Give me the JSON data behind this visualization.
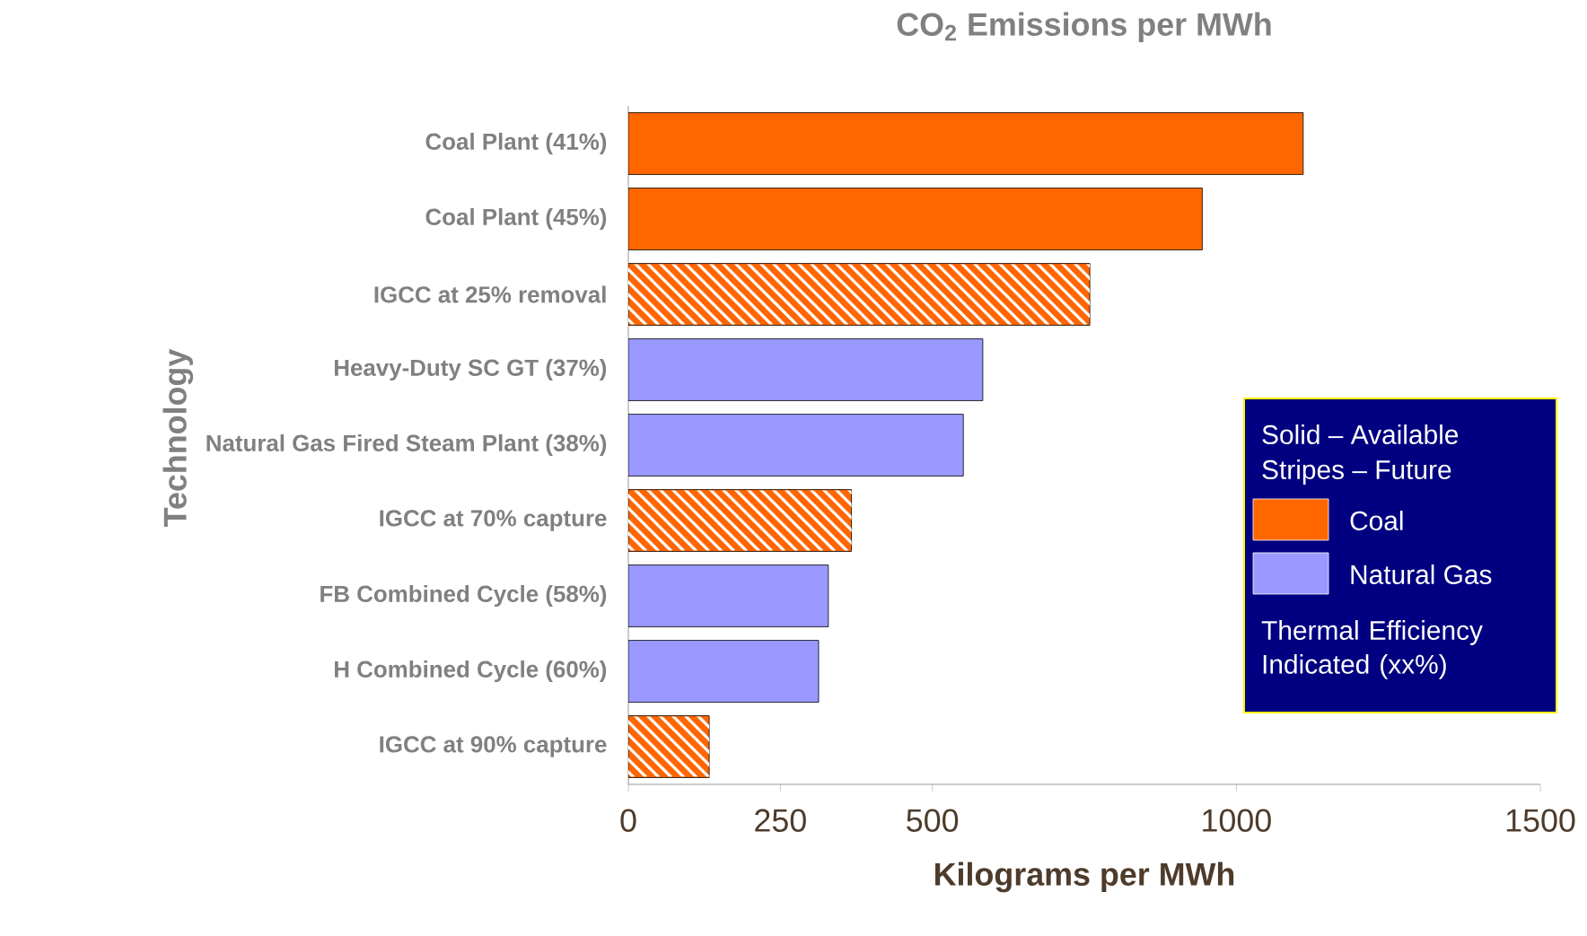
{
  "chart_data": {
    "type": "bar",
    "orientation": "horizontal",
    "title": "CO$_{2}$ Emissions per MWh",
    "xlabel": "Kilograms per MWh",
    "ylabel": "Technology",
    "categories": [
      "Coal Plant (41%)",
      "Coal Plant (45%)",
      "IGCC at 25% removal",
      "Heavy-Duty SC GT (37%)",
      "Natural Gas Fired Steam Plant (38%)",
      "IGCC at 70% capture",
      "FB Combined Cycle (58%)",
      "H Combined Cycle (60%)",
      "IGCC at 90% capture"
    ],
    "series": [
      {
        "name": "Coal",
        "color": "#ff6600",
        "values": [
          1110,
          944,
          null,
          null,
          null,
          null,
          null,
          null,
          null
        ]
      },
      {
        "name": "Natural Gas",
        "color": "#9999ff",
        "values": [
          null,
          null,
          null,
          583,
          551,
          null,
          329,
          313,
          null
        ]
      },
      {
        "color": "#ff6600",
        "values": [
          null,
          null,
          759,
          null,
          null,
          367,
          null,
          null,
          133
        ]
      }
    ],
    "xlim": [
      0,
      1500
    ],
    "xticks": [
      0,
      250,
      500,
      1000,
      1500
    ],
    "legend": "right",
    "annotations": [
      "Solid – Available",
      "Stripes – Future",
      "Thermal Efficiency Indicated (xx%)"
    ]
  }
}
